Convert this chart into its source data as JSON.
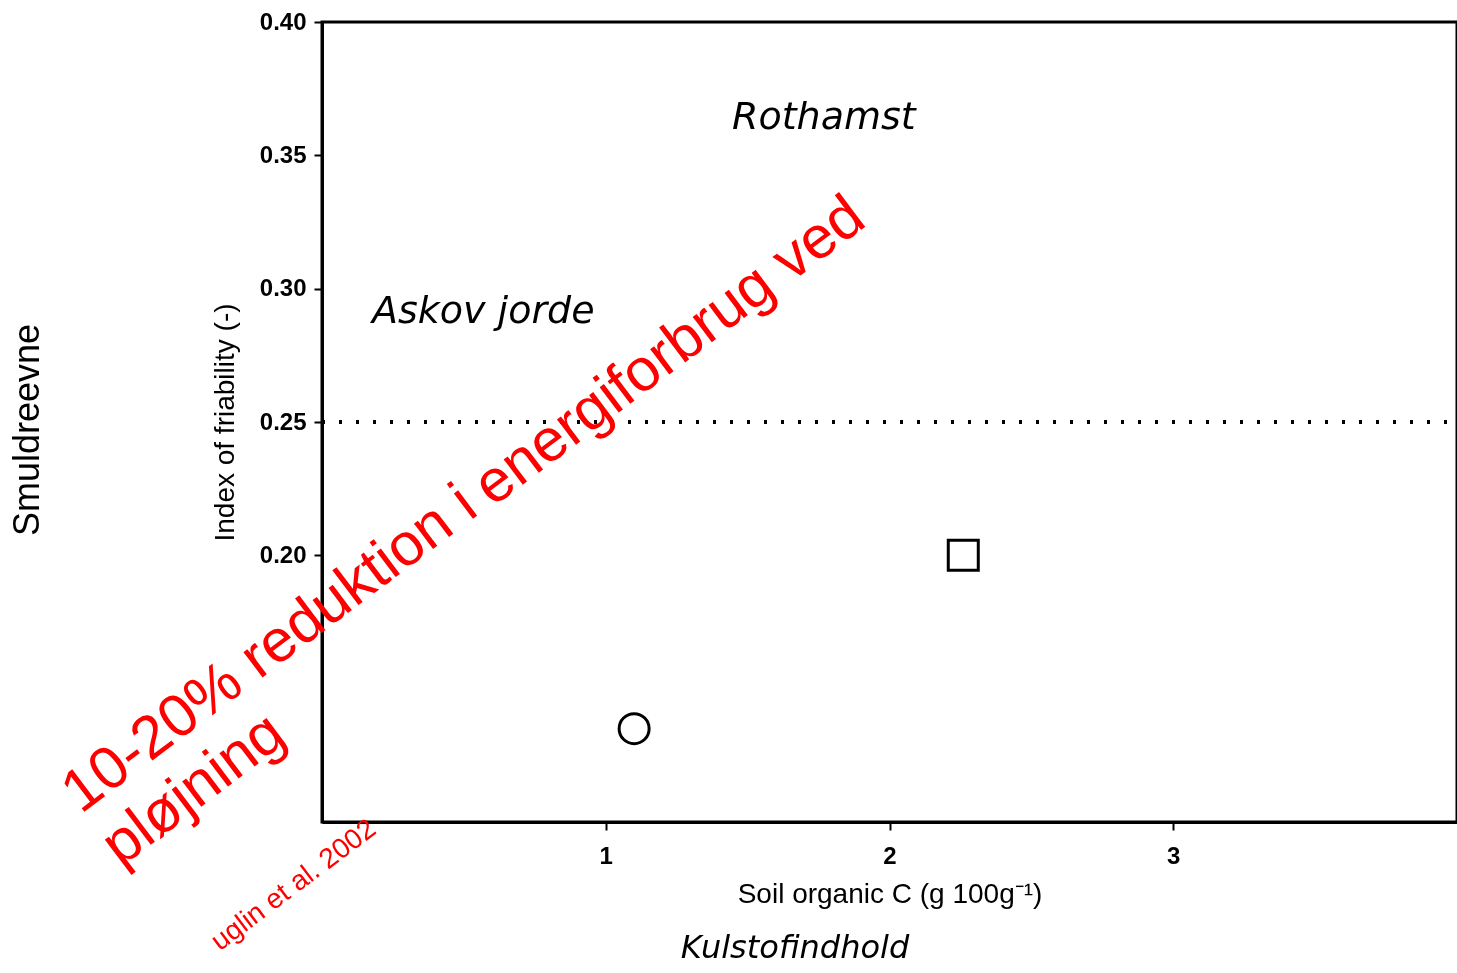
{
  "chart_data": {
    "type": "scatter",
    "xlabel": "Soil organic C (g 100g⁻¹)",
    "ylabel": "Index of friability (-)",
    "series": [
      {
        "color": "#000000",
        "marker": "circle",
        "x": [
          1.1
        ],
        "values": [
          0.135
        ]
      },
      {
        "color": "#000000",
        "marker": "square",
        "x": [
          2.26
        ],
        "values": [
          0.2
        ]
      }
    ],
    "xlim": [
      0,
      4
    ],
    "xticks": [
      1,
      2,
      3
    ],
    "ylim": [
      0.1,
      0.4
    ],
    "yticks": [
      {
        "value": 0.2,
        "label": "0.20"
      },
      {
        "value": 0.25,
        "label": "0.25"
      },
      {
        "value": 0.3,
        "label": "0.30"
      },
      {
        "value": 0.35,
        "label": "0.35"
      },
      {
        "value": 0.4,
        "label": "0.40"
      }
    ],
    "ref_lines": [
      {
        "axis": "y",
        "value": 0.25,
        "color": "#000000",
        "line_style": "dotted"
      }
    ],
    "annotations": [
      "Rothamst",
      "Askov jorde",
      "Smuldreevne",
      "Kulstofindhold",
      "10-20% reduktion i",
      "energiforbrug ved",
      "pløjning",
      "uglin et al. 2002"
    ],
    "grid": false
  }
}
